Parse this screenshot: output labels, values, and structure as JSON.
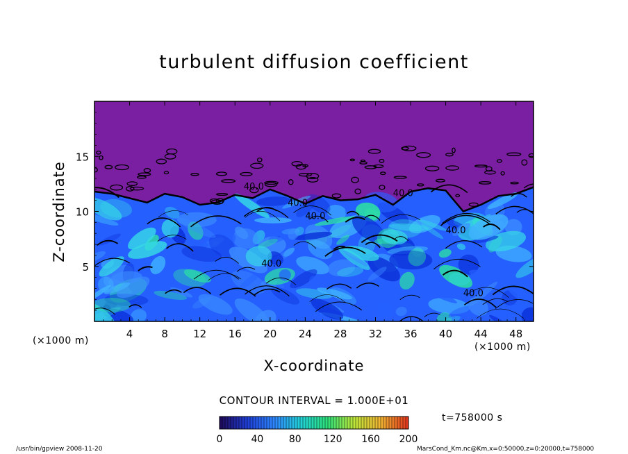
{
  "chart_data": {
    "type": "heatmap",
    "title": "turbulent diffusion coefficient",
    "xlabel": "X-coordinate",
    "ylabel": "Z-coordinate",
    "x_unit": "(×1000 m)",
    "xlim": [
      0,
      50
    ],
    "ylim": [
      0,
      20
    ],
    "x_ticks": [
      4,
      8,
      12,
      16,
      20,
      24,
      28,
      32,
      36,
      40,
      44,
      48
    ],
    "y_ticks": [
      5,
      10,
      15
    ],
    "contour_interval_text": "CONTOUR INTERVAL = 1.000E+01",
    "contour_labels": [
      "40.0",
      "40.0",
      "40.0",
      "40.0",
      "40.0",
      "40.0",
      "40.0"
    ],
    "colorbar": {
      "min": 0,
      "max": 200,
      "ticks": [
        "0",
        "40",
        "80",
        "120",
        "160",
        "200"
      ],
      "colors": [
        "#1e0a5e",
        "#1f3fd8",
        "#2f86ff",
        "#22d2d8",
        "#2ce07a",
        "#bde63a",
        "#f0b432",
        "#e43b1e"
      ]
    },
    "boundary_layer_top_km": [
      11.8,
      11.6,
      11.2,
      10.8,
      11.6,
      11.3,
      10.6,
      10.8,
      11.5,
      11.2,
      12.0,
      11.4,
      10.7,
      11.4,
      11.0,
      11.1,
      11.5,
      10.6,
      11.8,
      12.1,
      11.9,
      10.0,
      10.6,
      11.4,
      11.6,
      12.2
    ],
    "background_color": "#7b1fa2",
    "field_colors": [
      "#0a2fd8",
      "#2560ff",
      "#3c8cff",
      "#41b4ff",
      "#36d8e6",
      "#2ce6a0"
    ]
  },
  "annotations": {
    "time": "t=758000 s",
    "footer_left": "/usr/bin/gpview  2008-11-20",
    "footer_right": "MarsCond_Km.nc@Km,x=0:50000,z=0:20000,t=758000"
  }
}
